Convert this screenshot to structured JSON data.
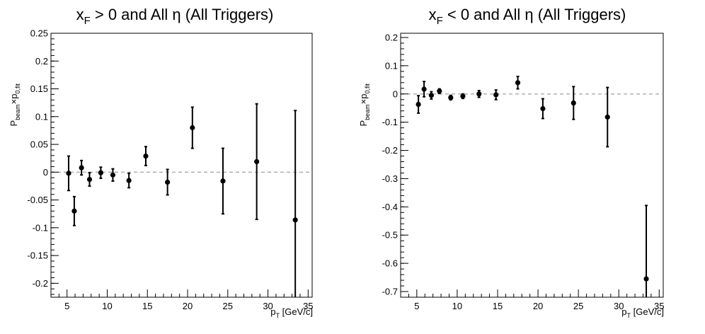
{
  "chart_data": [
    {
      "type": "scatter",
      "title": {
        "pre": "x",
        "sub": "F",
        "post": " > 0 and All η (All Triggers)"
      },
      "xlabel": {
        "pre": "p",
        "sub": "T",
        "post": " [GeV/c]"
      },
      "ylabel": {
        "pre": "P",
        "sub1": "beam",
        "mid": "×p",
        "sub2": "0,fit"
      },
      "xlim": [
        3,
        35.5
      ],
      "ylim": [
        -0.225,
        0.25
      ],
      "xticks": [
        "5",
        "10",
        "15",
        "20",
        "25",
        "30",
        "35"
      ],
      "xtick_values": [
        5,
        10,
        15,
        20,
        25,
        30,
        35
      ],
      "yticks": [
        "0.25",
        "0.2",
        "0.15",
        "0.1",
        "0.05",
        "0",
        "-0.05",
        "-0.1",
        "-0.15",
        "-0.2"
      ],
      "ytick_values": [
        0.25,
        0.2,
        0.15,
        0.1,
        0.05,
        0,
        -0.05,
        -0.1,
        -0.15,
        -0.2
      ],
      "reference_line": 0,
      "grid": false,
      "series": [
        {
          "points": [
            {
              "x": 5.2,
              "y": -0.002,
              "err": 0.031
            },
            {
              "x": 5.9,
              "y": -0.07,
              "err": 0.026
            },
            {
              "x": 6.8,
              "y": 0.008,
              "err": 0.013
            },
            {
              "x": 7.8,
              "y": -0.013,
              "err": 0.012
            },
            {
              "x": 9.2,
              "y": -0.001,
              "err": 0.01
            },
            {
              "x": 10.7,
              "y": -0.005,
              "err": 0.011
            },
            {
              "x": 12.7,
              "y": -0.015,
              "err": 0.013
            },
            {
              "x": 14.8,
              "y": 0.029,
              "err": 0.017
            },
            {
              "x": 17.5,
              "y": -0.018,
              "err": 0.023
            },
            {
              "x": 20.6,
              "y": 0.08,
              "err": 0.037
            },
            {
              "x": 24.4,
              "y": -0.016,
              "err": 0.059
            },
            {
              "x": 28.6,
              "y": 0.019,
              "err": 0.104
            },
            {
              "x": 33.4,
              "y": -0.086,
              "err": 0.197
            }
          ]
        }
      ]
    },
    {
      "type": "scatter",
      "title": {
        "pre": "x",
        "sub": "F",
        "post": " < 0 and All η (All Triggers)"
      },
      "xlabel": {
        "pre": "p",
        "sub": "T",
        "post": " [GeV/c]"
      },
      "ylabel": {
        "pre": "P",
        "sub1": "beam",
        "mid": "×p",
        "sub2": "0,fit"
      },
      "xlim": [
        3,
        35.5
      ],
      "ylim": [
        -0.72,
        0.215
      ],
      "xticks": [
        "5",
        "10",
        "15",
        "20",
        "25",
        "30",
        "35"
      ],
      "xtick_values": [
        5,
        10,
        15,
        20,
        25,
        30,
        35
      ],
      "yticks": [
        "0.2",
        "0.1",
        "0",
        "-0.1",
        "-0.2",
        "-0.3",
        "-0.4",
        "-0.5",
        "-0.6",
        "-0.7"
      ],
      "ytick_values": [
        0.2,
        0.1,
        0,
        -0.1,
        -0.2,
        -0.3,
        -0.4,
        -0.5,
        -0.6,
        -0.7
      ],
      "reference_line": 0,
      "grid": false,
      "series": [
        {
          "points": [
            {
              "x": 5.2,
              "y": -0.037,
              "err": 0.031
            },
            {
              "x": 5.9,
              "y": 0.017,
              "err": 0.027
            },
            {
              "x": 6.8,
              "y": -0.005,
              "err": 0.013
            },
            {
              "x": 7.8,
              "y": 0.01,
              "err": 0.008
            },
            {
              "x": 9.2,
              "y": -0.013,
              "err": 0.008
            },
            {
              "x": 10.7,
              "y": -0.008,
              "err": 0.008
            },
            {
              "x": 12.7,
              "y": 0.0,
              "err": 0.012
            },
            {
              "x": 14.8,
              "y": -0.003,
              "err": 0.017
            },
            {
              "x": 17.5,
              "y": 0.04,
              "err": 0.022
            },
            {
              "x": 20.6,
              "y": -0.052,
              "err": 0.035
            },
            {
              "x": 24.4,
              "y": -0.032,
              "err": 0.058
            },
            {
              "x": 28.6,
              "y": -0.082,
              "err": 0.105
            },
            {
              "x": 33.4,
              "y": -0.655,
              "err": 0.26
            }
          ]
        }
      ]
    }
  ]
}
